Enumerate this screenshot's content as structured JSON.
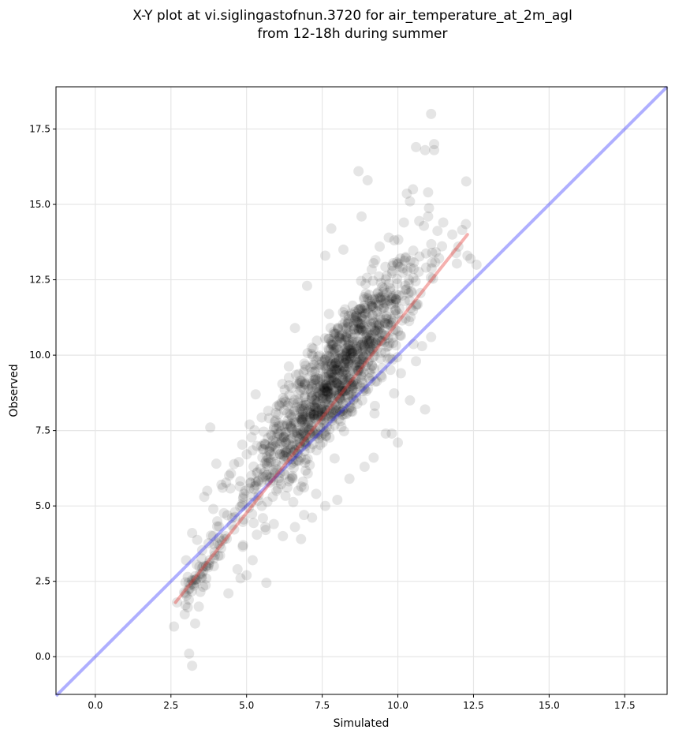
{
  "chart_data": {
    "type": "scatter",
    "title_lines": [
      "X-Y plot at vi.siglingastofnun.3720 for air_temperature_at_2m_agl",
      "from 12-18h during summer"
    ],
    "xlabel": "Simulated",
    "ylabel": "Observed",
    "xlim": [
      -1.3,
      18.9
    ],
    "ylim": [
      -1.25,
      18.9
    ],
    "xticks": [
      0.0,
      2.5,
      5.0,
      7.5,
      10.0,
      12.5,
      15.0,
      17.5
    ],
    "xtick_labels": [
      "0.0",
      "2.5",
      "5.0",
      "7.5",
      "10.0",
      "12.5",
      "15.0",
      "17.5"
    ],
    "yticks": [
      0.0,
      2.5,
      5.0,
      7.5,
      10.0,
      12.5,
      15.0,
      17.5
    ],
    "ytick_labels": [
      "0.0",
      "2.5",
      "5.0",
      "7.5",
      "10.0",
      "12.5",
      "15.0",
      "17.5"
    ],
    "grid": true,
    "point_color": "#000000",
    "point_alpha": 0.1,
    "outlier_points": [
      [
        2.6,
        1.0
      ],
      [
        2.7,
        1.8
      ],
      [
        3.1,
        0.1
      ],
      [
        3.2,
        -0.3
      ],
      [
        3.3,
        1.1
      ],
      [
        3.0,
        3.2
      ],
      [
        3.2,
        4.1
      ],
      [
        3.6,
        5.3
      ],
      [
        3.7,
        5.5
      ],
      [
        3.8,
        7.6
      ],
      [
        4.0,
        6.4
      ],
      [
        3.9,
        4.9
      ],
      [
        4.4,
        2.1
      ],
      [
        4.7,
        2.9
      ],
      [
        4.8,
        2.6
      ],
      [
        5.0,
        2.7
      ],
      [
        5.2,
        3.2
      ],
      [
        5.3,
        8.7
      ],
      [
        5.1,
        7.7
      ],
      [
        5.5,
        5.0
      ],
      [
        5.9,
        4.4
      ],
      [
        6.2,
        4.0
      ],
      [
        6.6,
        4.3
      ],
      [
        6.8,
        3.9
      ],
      [
        6.0,
        8.3
      ],
      [
        6.4,
        9.0
      ],
      [
        6.6,
        10.9
      ],
      [
        7.0,
        12.3
      ],
      [
        7.6,
        13.3
      ],
      [
        7.8,
        14.2
      ],
      [
        8.2,
        13.5
      ],
      [
        8.7,
        16.1
      ],
      [
        9.0,
        15.8
      ],
      [
        8.8,
        14.6
      ],
      [
        9.4,
        13.6
      ],
      [
        9.7,
        13.9
      ],
      [
        10.2,
        14.4
      ],
      [
        10.4,
        15.1
      ],
      [
        10.5,
        15.5
      ],
      [
        10.6,
        16.9
      ],
      [
        10.9,
        16.8
      ],
      [
        11.0,
        15.4
      ],
      [
        11.1,
        18.0
      ],
      [
        11.2,
        16.8
      ],
      [
        11.2,
        17.0
      ],
      [
        11.0,
        14.6
      ],
      [
        11.5,
        14.4
      ],
      [
        11.8,
        14.0
      ],
      [
        12.0,
        13.6
      ],
      [
        12.3,
        13.3
      ],
      [
        12.4,
        13.2
      ],
      [
        12.6,
        13.0
      ],
      [
        11.1,
        10.6
      ],
      [
        10.8,
        10.3
      ],
      [
        10.6,
        9.8
      ],
      [
        10.1,
        9.4
      ],
      [
        10.9,
        8.2
      ],
      [
        10.4,
        8.5
      ],
      [
        10.0,
        7.1
      ],
      [
        9.6,
        7.4
      ],
      [
        9.8,
        7.4
      ],
      [
        9.2,
        6.6
      ],
      [
        8.9,
        6.3
      ],
      [
        8.4,
        5.9
      ],
      [
        8.0,
        5.2
      ],
      [
        7.6,
        5.0
      ],
      [
        7.3,
        5.4
      ],
      [
        6.9,
        4.7
      ]
    ],
    "fit_line": {
      "color": "#e53935",
      "points": [
        [
          2.65,
          1.8
        ],
        [
          12.3,
          14.0
        ]
      ]
    },
    "identity_line": {
      "color": "#1a1aff",
      "points": [
        [
          -1.3,
          -1.3
        ],
        [
          18.9,
          18.9
        ]
      ]
    }
  }
}
